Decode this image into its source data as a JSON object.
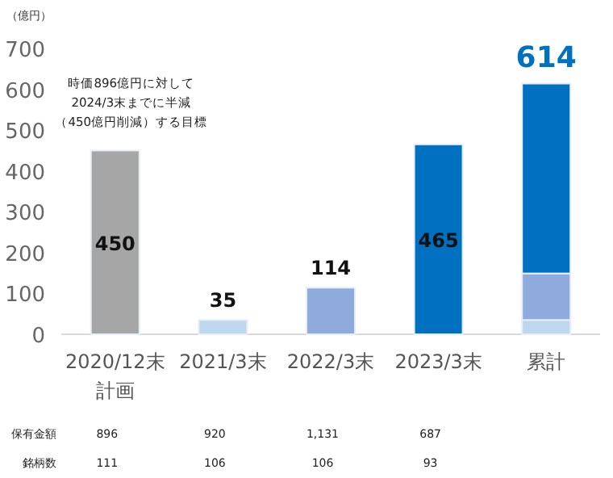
{
  "chart_data": {
    "type": "bar",
    "stacked": true,
    "ylabel": "（億円）",
    "categories": [
      "2020/12末計画",
      "2021/3末",
      "2022/3末",
      "2023/3末",
      "累計"
    ],
    "series": [
      {
        "color": "#a6a6a6",
        "values": [
          450,
          null,
          null,
          null,
          null
        ],
        "value_labels": [
          "450",
          null,
          null,
          null,
          null
        ]
      },
      {
        "color": "#bdd7ee",
        "values": [
          null,
          35,
          null,
          null,
          35
        ],
        "value_labels": [
          null,
          "35",
          null,
          null,
          null
        ]
      },
      {
        "color": "#8faadc",
        "values": [
          null,
          null,
          114,
          null,
          114
        ],
        "value_labels": [
          null,
          null,
          "114",
          null,
          null
        ]
      },
      {
        "color": "#0070c0",
        "values": [
          null,
          null,
          null,
          465,
          465
        ],
        "value_labels": [
          null,
          null,
          null,
          "465",
          null
        ]
      }
    ],
    "totals": [
      null,
      null,
      null,
      null,
      "614"
    ],
    "ylim": [
      0,
      700
    ],
    "yticks": [
      0,
      100,
      200,
      300,
      400,
      500,
      600,
      700
    ],
    "annotations": [
      "時価896億円に対して",
      "2024/3末までに半減",
      "（450億円削減）する目標",
      "保有金額",
      "896",
      "920",
      "1,131",
      "687",
      "銘柄数",
      "111",
      "106",
      "106",
      "93"
    ]
  }
}
